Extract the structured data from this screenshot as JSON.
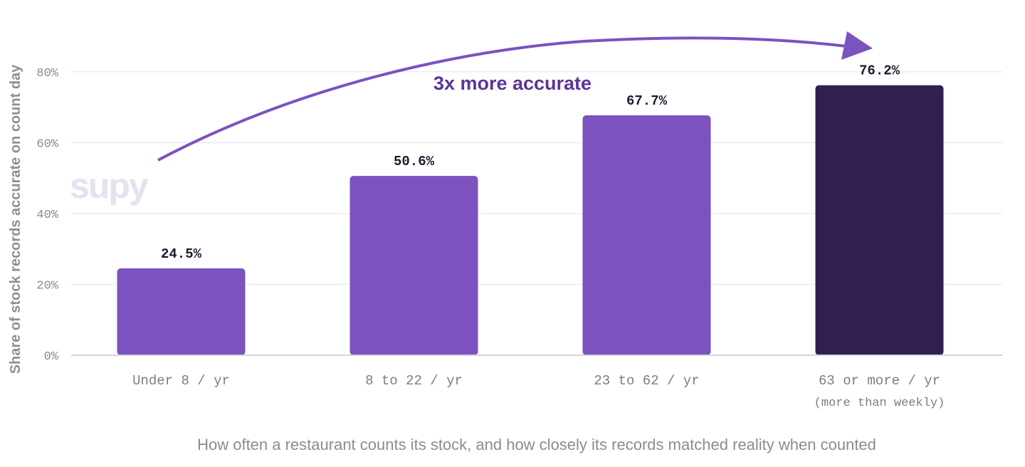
{
  "chart_data": {
    "type": "bar",
    "categories": [
      "Under 8 / yr",
      "8 to 22 / yr",
      "23 to 62 / yr",
      "63 or more / yr"
    ],
    "category_sublabels": [
      "",
      "",
      "",
      "(more than weekly)"
    ],
    "values": [
      24.5,
      50.6,
      67.7,
      76.2
    ],
    "value_labels": [
      "24.5%",
      "50.6%",
      "67.7%",
      "76.2%"
    ],
    "bar_colors": [
      "#7b52be",
      "#7b52be",
      "#7b52be",
      "#311f52"
    ],
    "ylabel": "Share of stock records accurate on count day",
    "ylim": [
      0,
      90
    ],
    "yticks": [
      0,
      20,
      40,
      60,
      80
    ],
    "ytick_labels": [
      "0%",
      "20%",
      "40%",
      "60%",
      "80%"
    ],
    "grid": true,
    "annotation": "3x more accurate",
    "caption": "How often a restaurant counts its stock, and how closely its records matched reality when counted"
  },
  "logo_text": "supy",
  "colors": {
    "accent": "#7b52be",
    "dark": "#311f52",
    "arrow": "#7b52be",
    "grid": "#ecebf5"
  }
}
